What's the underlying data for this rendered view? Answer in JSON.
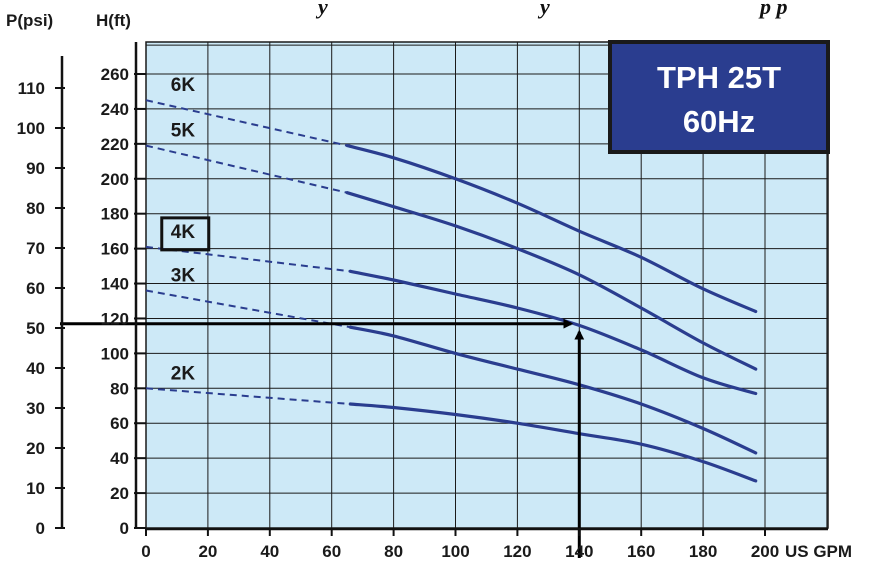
{
  "page": {
    "top_caption": "y",
    "top_caption_2": "y",
    "top_caption_3": "p p"
  },
  "chart_data": {
    "type": "line",
    "title": "TPH 25T",
    "subtitle": "60Hz",
    "xlabel": "US GPM",
    "ylabel_left": "P(psi)",
    "ylabel_right": "H(ft)",
    "xlim": [
      0,
      200
    ],
    "ylim_ft": [
      0,
      280
    ],
    "ylim_psi": [
      0,
      121
    ],
    "grid": true,
    "colors": {
      "background": "#cde9f7",
      "curve": "#2a3d8f",
      "grid": "#1a1a1a",
      "title_box": "#2a3d8f",
      "title_border": "#1a1a1a",
      "arrow": "#000000"
    },
    "x_ticks": [
      "0",
      "20",
      "40",
      "60",
      "80",
      "100",
      "120",
      "140",
      "160",
      "180",
      "200"
    ],
    "h_ticks": [
      {
        "value": 0,
        "label": "0"
      },
      {
        "value": 20,
        "label": "20"
      },
      {
        "value": 40,
        "label": "40"
      },
      {
        "value": 60,
        "label": "60"
      },
      {
        "value": 80,
        "label": "80"
      },
      {
        "value": 100,
        "label": "100"
      },
      {
        "value": 120,
        "label": "120"
      },
      {
        "value": 140,
        "label": "140"
      },
      {
        "value": 160,
        "label": "160"
      },
      {
        "value": 180,
        "label": "180"
      },
      {
        "value": 200,
        "label": "200"
      },
      {
        "value": 220,
        "label": "220"
      },
      {
        "value": 240,
        "label": "240"
      },
      {
        "value": 260,
        "label": "260"
      }
    ],
    "p_ticks": [
      {
        "value": 0,
        "label": "0"
      },
      {
        "value": 10,
        "label": "10"
      },
      {
        "value": 20,
        "label": "20"
      },
      {
        "value": 30,
        "label": "30"
      },
      {
        "value": 40,
        "label": "40"
      },
      {
        "value": 50,
        "label": "50"
      },
      {
        "value": 60,
        "label": "60"
      },
      {
        "value": 70,
        "label": "70"
      },
      {
        "value": 80,
        "label": "80"
      },
      {
        "value": 90,
        "label": "90"
      },
      {
        "value": 100,
        "label": "100"
      },
      {
        "value": 110,
        "label": "110"
      }
    ],
    "series": [
      {
        "name": "6K",
        "dashed": [
          [
            0,
            245
          ],
          [
            65,
            219
          ]
        ],
        "solid": [
          [
            65,
            219
          ],
          [
            80,
            212
          ],
          [
            100,
            200
          ],
          [
            120,
            186
          ],
          [
            140,
            170
          ],
          [
            160,
            155
          ],
          [
            180,
            137
          ],
          [
            197,
            124
          ]
        ]
      },
      {
        "name": "5K",
        "dashed": [
          [
            0,
            219
          ],
          [
            65,
            192
          ]
        ],
        "solid": [
          [
            65,
            192
          ],
          [
            80,
            184
          ],
          [
            100,
            173
          ],
          [
            120,
            160
          ],
          [
            140,
            145
          ],
          [
            160,
            126
          ],
          [
            180,
            106
          ],
          [
            197,
            91
          ]
        ]
      },
      {
        "name": "4K",
        "highlighted": true,
        "dashed": [
          [
            0,
            161
          ],
          [
            66,
            147
          ]
        ],
        "solid": [
          [
            66,
            147
          ],
          [
            80,
            142
          ],
          [
            100,
            134
          ],
          [
            120,
            126
          ],
          [
            140,
            116
          ],
          [
            160,
            102
          ],
          [
            180,
            86
          ],
          [
            197,
            77
          ]
        ]
      },
      {
        "name": "3K",
        "dashed": [
          [
            0,
            136
          ],
          [
            66,
            115
          ]
        ],
        "solid": [
          [
            66,
            115
          ],
          [
            80,
            110
          ],
          [
            100,
            100
          ],
          [
            120,
            91
          ],
          [
            140,
            82
          ],
          [
            160,
            71
          ],
          [
            180,
            57
          ],
          [
            197,
            43
          ]
        ]
      },
      {
        "name": "2K",
        "dashed": [
          [
            0,
            80
          ],
          [
            66,
            71
          ]
        ],
        "solid": [
          [
            66,
            71
          ],
          [
            80,
            69
          ],
          [
            100,
            65
          ],
          [
            120,
            60
          ],
          [
            140,
            54
          ],
          [
            160,
            48
          ],
          [
            180,
            38
          ],
          [
            197,
            27
          ]
        ]
      }
    ],
    "annotations": [
      {
        "type": "arrow-horizontal",
        "from_x": -28,
        "to_x": 140,
        "y_ft": 117
      },
      {
        "type": "arrow-vertical",
        "x": 140,
        "from_y_ft": 0,
        "to_y_ft": 117
      }
    ]
  }
}
